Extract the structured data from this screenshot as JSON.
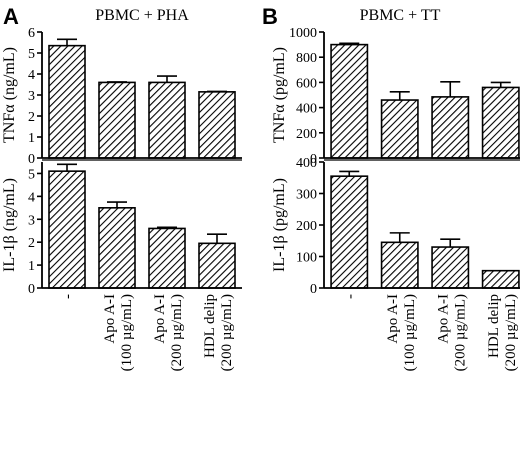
{
  "panels": [
    {
      "letter": "A",
      "title": "PBMC + PHA",
      "categories": [
        "-",
        "Apo A-I",
        "Apo A-I",
        "HDL delip"
      ],
      "category_sub": [
        "",
        "(100 µg/mL)",
        "(200 µg/mL)",
        "(200 µg/mL)"
      ]
    },
    {
      "letter": "B",
      "title": "PBMC + TT",
      "categories": [
        "-",
        "Apo A-I",
        "Apo A-I",
        "HDL delip"
      ],
      "category_sub": [
        "",
        "(100 µg/mL)",
        "(200 µg/mL)",
        "(200 µg/mL)"
      ]
    }
  ],
  "chart_data": [
    {
      "type": "bar",
      "panel": "A",
      "title": "PBMC + PHA",
      "categories": [
        "-",
        "Apo A-I (100 µg/mL)",
        "Apo A-I (200 µg/mL)",
        "HDL delip (200 µg/mL)"
      ],
      "ylabel": "TNFα (ng/mL)",
      "ylim": [
        0,
        6
      ],
      "yticks": [
        0,
        1,
        2,
        3,
        4,
        5,
        6
      ],
      "values": [
        5.35,
        3.6,
        3.6,
        3.15
      ],
      "errors": [
        0.3,
        0.02,
        0.3,
        0.02
      ],
      "pattern": "diagonal-hatch"
    },
    {
      "type": "bar",
      "panel": "A",
      "categories": [
        "-",
        "Apo A-I (100 µg/mL)",
        "Apo A-I (200 µg/mL)",
        "HDL delip (200 µg/mL)"
      ],
      "ylabel": "IL-1β (ng/mL)",
      "ylim": [
        0,
        5.5
      ],
      "yticks": [
        0,
        1,
        2,
        3,
        4,
        5
      ],
      "values": [
        5.1,
        3.5,
        2.6,
        1.95
      ],
      "errors": [
        0.3,
        0.25,
        0.05,
        0.4
      ],
      "pattern": "diagonal-hatch"
    },
    {
      "type": "bar",
      "panel": "B",
      "title": "PBMC + TT",
      "categories": [
        "-",
        "Apo A-I (100 µg/mL)",
        "Apo A-I (200 µg/mL)",
        "HDL delip (200 µg/mL)"
      ],
      "ylabel": "TNFα (pg/mL)",
      "ylim": [
        0,
        1000
      ],
      "yticks": [
        0,
        200,
        400,
        600,
        800,
        1000
      ],
      "values": [
        900,
        460,
        485,
        560
      ],
      "errors": [
        10,
        65,
        120,
        40
      ],
      "pattern": "diagonal-hatch"
    },
    {
      "type": "bar",
      "panel": "B",
      "categories": [
        "-",
        "Apo A-I (100 µg/mL)",
        "Apo A-I (200 µg/mL)",
        "HDL delip (200 µg/mL)"
      ],
      "ylabel": "IL-1β (pg/mL)",
      "ylim": [
        0,
        400
      ],
      "yticks": [
        0,
        100,
        200,
        300,
        400
      ],
      "values": [
        355,
        145,
        130,
        55
      ],
      "errors": [
        15,
        30,
        25,
        0
      ],
      "pattern": "diagonal-hatch"
    }
  ]
}
